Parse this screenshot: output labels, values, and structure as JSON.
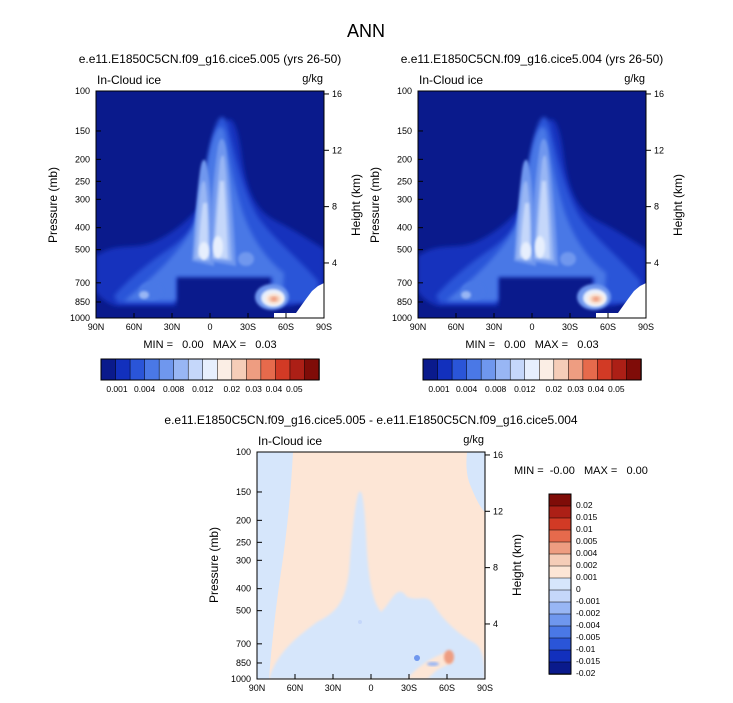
{
  "page_title": "ANN",
  "colors": {
    "levels_main": [
      "#0a1a8c",
      "#1230bd",
      "#2a55d8",
      "#4a78e6",
      "#6f97ee",
      "#98b6f4",
      "#c5d7fa",
      "#e7effd",
      "#fbeee5",
      "#f5cdb8",
      "#ee9d81",
      "#e66a4c",
      "#d23a25",
      "#ac1f16",
      "#7f0c08"
    ],
    "levels_diff": [
      "#0a1a8c",
      "#1230bd",
      "#2a55d8",
      "#4a78e6",
      "#6f97ee",
      "#98b6f4",
      "#c5d7fa",
      "#d6e6fb",
      "#fde6d6",
      "#f5cdb8",
      "#ee9d81",
      "#e66a4c",
      "#d23a25",
      "#ac1f16",
      "#7f0c08"
    ]
  },
  "chart_data": [
    {
      "type": "heatmap",
      "title": "e.e11.E1850C5CN.f09_g16.cice5.005 (yrs 26-50)",
      "field_label": "In-Cloud ice",
      "units": "g/kg",
      "ylabel": "Pressure (mb)",
      "ylabel_right": "Height (km)",
      "x_ticks": [
        "90N",
        "60N",
        "30N",
        "0",
        "30S",
        "60S",
        "90S"
      ],
      "y_ticks": [
        "100",
        "150",
        "200",
        "250",
        "300",
        "400",
        "500",
        "700",
        "850",
        "1000"
      ],
      "height_ticks": [
        "16",
        "12",
        "8",
        "4"
      ],
      "min_max": "MIN =   0.00   MAX =   0.03",
      "colorbar_labels": [
        "0.001",
        "0.004",
        "0.008",
        "0.012",
        "0.02",
        "0.03",
        "0.04",
        "0.05"
      ]
    },
    {
      "type": "heatmap",
      "title": "e.e11.E1850C5CN.f09_g16.cice5.004 (yrs 26-50)",
      "field_label": "In-Cloud ice",
      "units": "g/kg",
      "ylabel": "Pressure (mb)",
      "ylabel_right": "Height (km)",
      "x_ticks": [
        "90N",
        "60N",
        "30N",
        "0",
        "30S",
        "60S",
        "90S"
      ],
      "y_ticks": [
        "100",
        "150",
        "200",
        "250",
        "300",
        "400",
        "500",
        "700",
        "850",
        "1000"
      ],
      "height_ticks": [
        "16",
        "12",
        "8",
        "4"
      ],
      "min_max": "MIN =   0.00   MAX =   0.03",
      "colorbar_labels": [
        "0.001",
        "0.004",
        "0.008",
        "0.012",
        "0.02",
        "0.03",
        "0.04",
        "0.05"
      ]
    },
    {
      "type": "heatmap",
      "title": "e.e11.E1850C5CN.f09_g16.cice5.005 - e.e11.E1850C5CN.f09_g16.cice5.004",
      "field_label": "In-Cloud ice",
      "units": "g/kg",
      "ylabel": "Pressure (mb)",
      "ylabel_right": "Height (km)",
      "x_ticks": [
        "90N",
        "60N",
        "30N",
        "0",
        "30S",
        "60S",
        "90S"
      ],
      "y_ticks": [
        "100",
        "150",
        "200",
        "250",
        "300",
        "400",
        "500",
        "700",
        "850",
        "1000"
      ],
      "height_ticks": [
        "16",
        "12",
        "8",
        "4"
      ],
      "min_max": "MIN =  -0.00   MAX =   0.00",
      "colorbar_labels": [
        "0.02",
        "0.015",
        "0.01",
        "0.005",
        "0.004",
        "0.002",
        "0.001",
        "0",
        "-0.001",
        "-0.002",
        "-0.004",
        "-0.005",
        "-0.01",
        "-0.015",
        "-0.02"
      ]
    }
  ]
}
